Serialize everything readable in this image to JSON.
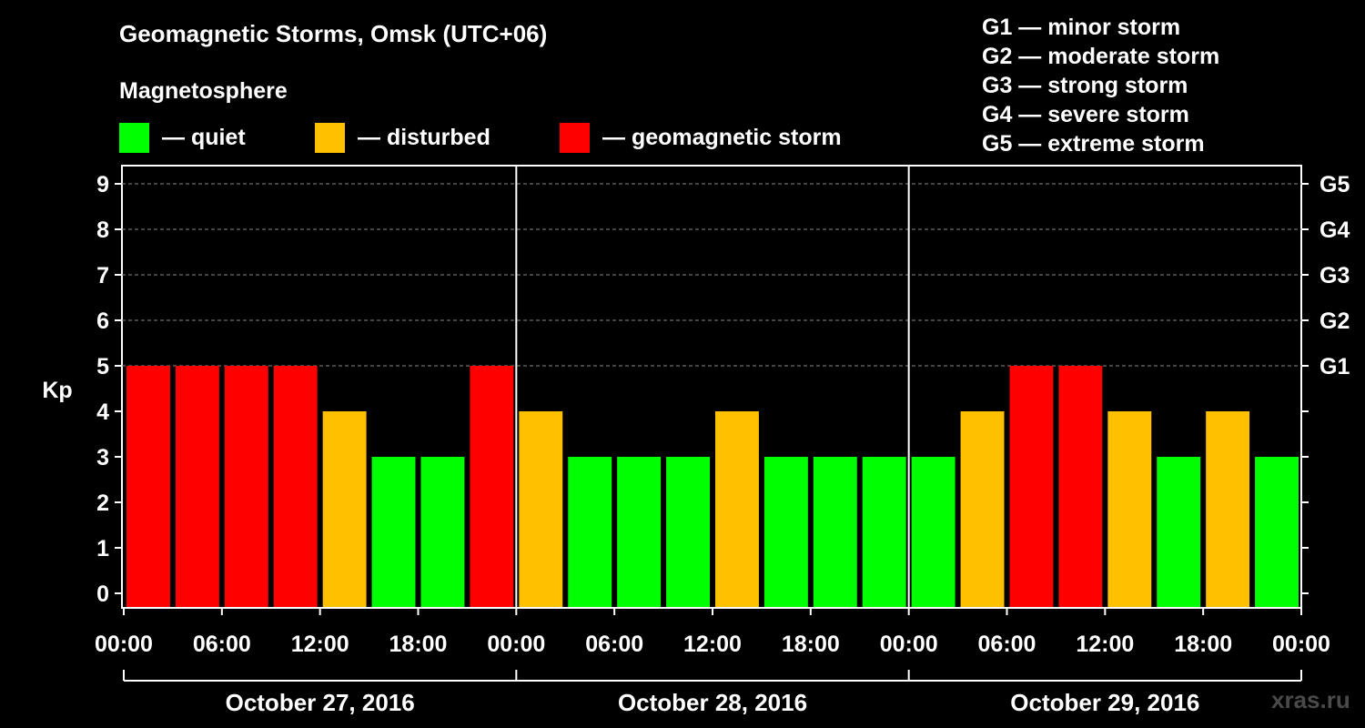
{
  "header": {
    "title": "Geomagnetic Storms, Omsk (UTC+06)",
    "subtitle": "Magnetosphere"
  },
  "legend": [
    {
      "label": "— quiet",
      "color": "#00ff00"
    },
    {
      "label": "— disturbed",
      "color": "#ffc000"
    },
    {
      "label": "— geomagnetic storm",
      "color": "#ff0000"
    }
  ],
  "g_scale": [
    "G1 — minor storm",
    "G2 — moderate storm",
    "G3 — strong storm",
    "G4 — severe storm",
    "G5 — extreme storm"
  ],
  "chart_data": {
    "type": "bar",
    "title": "Geomagnetic Storms, Omsk (UTC+06)",
    "ylabel": "Kp",
    "ylim": [
      0,
      9
    ],
    "y_ticks": [
      "0",
      "1",
      "2",
      "3",
      "4",
      "5",
      "6",
      "7",
      "8",
      "9"
    ],
    "right_ticks": [
      {
        "value": 5,
        "label": "G1"
      },
      {
        "value": 6,
        "label": "G2"
      },
      {
        "value": 7,
        "label": "G3"
      },
      {
        "value": 8,
        "label": "G4"
      },
      {
        "value": 9,
        "label": "G5"
      }
    ],
    "x_tick_labels": [
      "00:00",
      "06:00",
      "12:00",
      "18:00",
      "00:00",
      "06:00",
      "12:00",
      "18:00",
      "00:00",
      "06:00",
      "12:00",
      "18:00",
      "00:00"
    ],
    "days": [
      "October 27, 2016",
      "October 28, 2016",
      "October 29, 2016"
    ],
    "values": [
      5,
      5,
      5,
      5,
      4,
      3,
      3,
      5,
      4,
      3,
      3,
      3,
      4,
      3,
      3,
      3,
      3,
      4,
      5,
      5,
      4,
      3,
      4,
      3
    ],
    "colors": {
      "quiet": "#00ff00",
      "disturbed": "#ffc000",
      "storm": "#ff0000"
    }
  },
  "watermark": "xras.ru"
}
